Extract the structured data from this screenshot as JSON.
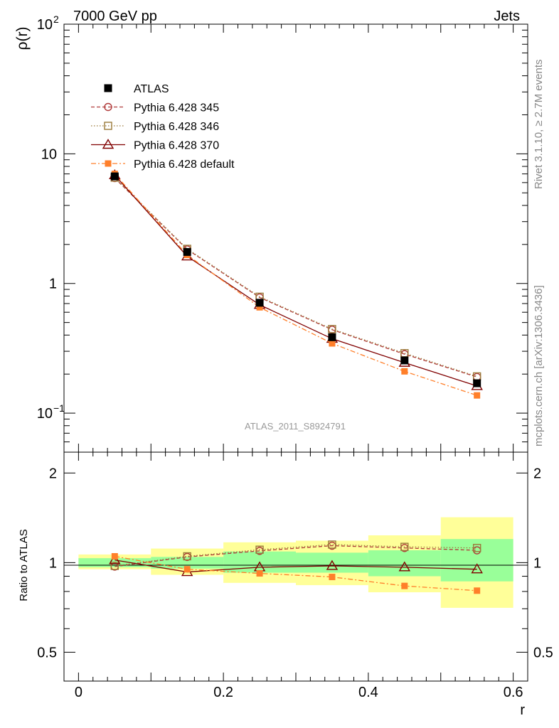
{
  "header": {
    "left": "7000 GeV pp",
    "right": "Jets"
  },
  "side_labels": {
    "rivet": "Rivet 3.1.10, ≥ 2.7M events",
    "mcplots": "mcplots.cern.ch [arXiv:1306.3436]"
  },
  "analysis_id": "ATLAS_2011_S8924791",
  "colors": {
    "atlas": "#000000",
    "p345": "#b03a3a",
    "p346": "#9b7a3a",
    "p370": "#800000",
    "pdefault": "#ff7f2a",
    "band_inner": "#99ff99",
    "band_outer": "#ffff99"
  },
  "chart_data": [
    {
      "type": "line",
      "panel": "main",
      "ylabel": "ρ(r)",
      "yscale": "log",
      "ylim": [
        0.05,
        100
      ],
      "xlim": [
        -0.02,
        0.62
      ],
      "y_ticks": [
        {
          "value": 0.1,
          "base": "10",
          "exp": "−1"
        },
        {
          "value": 1,
          "base": "1",
          "exp": ""
        },
        {
          "value": 10,
          "base": "10",
          "exp": ""
        },
        {
          "value": 100,
          "base": "10",
          "exp": "2"
        }
      ],
      "x": [
        0.05,
        0.15,
        0.25,
        0.35,
        0.45,
        0.55
      ],
      "series": [
        {
          "key": "atlas",
          "name": "ATLAS",
          "marker": "square-filled",
          "line": "none",
          "values": [
            6.7,
            1.75,
            0.71,
            0.385,
            0.255,
            0.17
          ]
        },
        {
          "key": "p345",
          "name": "Pythia 6.428 345",
          "marker": "circle-open",
          "line": "dashed",
          "values": [
            6.5,
            1.83,
            0.78,
            0.44,
            0.285,
            0.19
          ]
        },
        {
          "key": "p346",
          "name": "Pythia 6.428 346",
          "marker": "square-open",
          "line": "dotted",
          "values": [
            6.55,
            1.85,
            0.79,
            0.445,
            0.29,
            0.192
          ]
        },
        {
          "key": "p370",
          "name": "Pythia 6.428 370",
          "marker": "triangle-open",
          "line": "solid",
          "values": [
            6.85,
            1.62,
            0.685,
            0.375,
            0.245,
            0.162
          ]
        },
        {
          "key": "pdefault",
          "name": "Pythia 6.428 default",
          "marker": "square-filled",
          "line": "dashdot",
          "values": [
            7.0,
            1.66,
            0.655,
            0.345,
            0.21,
            0.137
          ]
        }
      ]
    },
    {
      "type": "line",
      "panel": "ratio",
      "ylabel": "Ratio to ATLAS",
      "xlabel": "r",
      "yscale": "log",
      "ylim": [
        0.4,
        2.35
      ],
      "xlim": [
        -0.02,
        0.62
      ],
      "y_ticks": [
        {
          "value": 0.5,
          "label": "0.5"
        },
        {
          "value": 1,
          "label": "1"
        },
        {
          "value": 2,
          "label": "2"
        }
      ],
      "x_ticks": [
        {
          "value": 0,
          "label": "0"
        },
        {
          "value": 0.2,
          "label": "0.2"
        },
        {
          "value": 0.4,
          "label": "0.4"
        },
        {
          "value": 0.6,
          "label": "0.6"
        }
      ],
      "x": [
        0.05,
        0.15,
        0.25,
        0.35,
        0.45,
        0.55
      ],
      "bands": [
        {
          "x_low": 0.0,
          "x_high": 0.1,
          "inner": [
            0.965,
            1.035
          ],
          "outer": [
            0.95,
            1.065
          ]
        },
        {
          "x_low": 0.1,
          "x_high": 0.2,
          "inner": [
            0.955,
            1.045
          ],
          "outer": [
            0.91,
            1.115
          ]
        },
        {
          "x_low": 0.2,
          "x_high": 0.3,
          "inner": [
            0.925,
            1.09
          ],
          "outer": [
            0.855,
            1.17
          ]
        },
        {
          "x_low": 0.3,
          "x_high": 0.4,
          "inner": [
            0.925,
            1.08
          ],
          "outer": [
            0.84,
            1.185
          ]
        },
        {
          "x_low": 0.4,
          "x_high": 0.5,
          "inner": [
            0.9,
            1.1
          ],
          "outer": [
            0.795,
            1.235
          ]
        },
        {
          "x_low": 0.5,
          "x_high": 0.6,
          "inner": [
            0.865,
            1.2
          ],
          "outer": [
            0.705,
            1.42
          ]
        }
      ],
      "series": [
        {
          "key": "p345",
          "values": [
            0.97,
            1.045,
            1.095,
            1.14,
            1.12,
            1.1
          ]
        },
        {
          "key": "p346",
          "values": [
            0.975,
            1.05,
            1.105,
            1.15,
            1.13,
            1.12
          ]
        },
        {
          "key": "p370",
          "values": [
            1.02,
            0.93,
            0.965,
            0.975,
            0.965,
            0.95
          ]
        },
        {
          "key": "pdefault",
          "values": [
            1.05,
            0.95,
            0.92,
            0.895,
            0.835,
            0.805
          ]
        }
      ]
    }
  ]
}
